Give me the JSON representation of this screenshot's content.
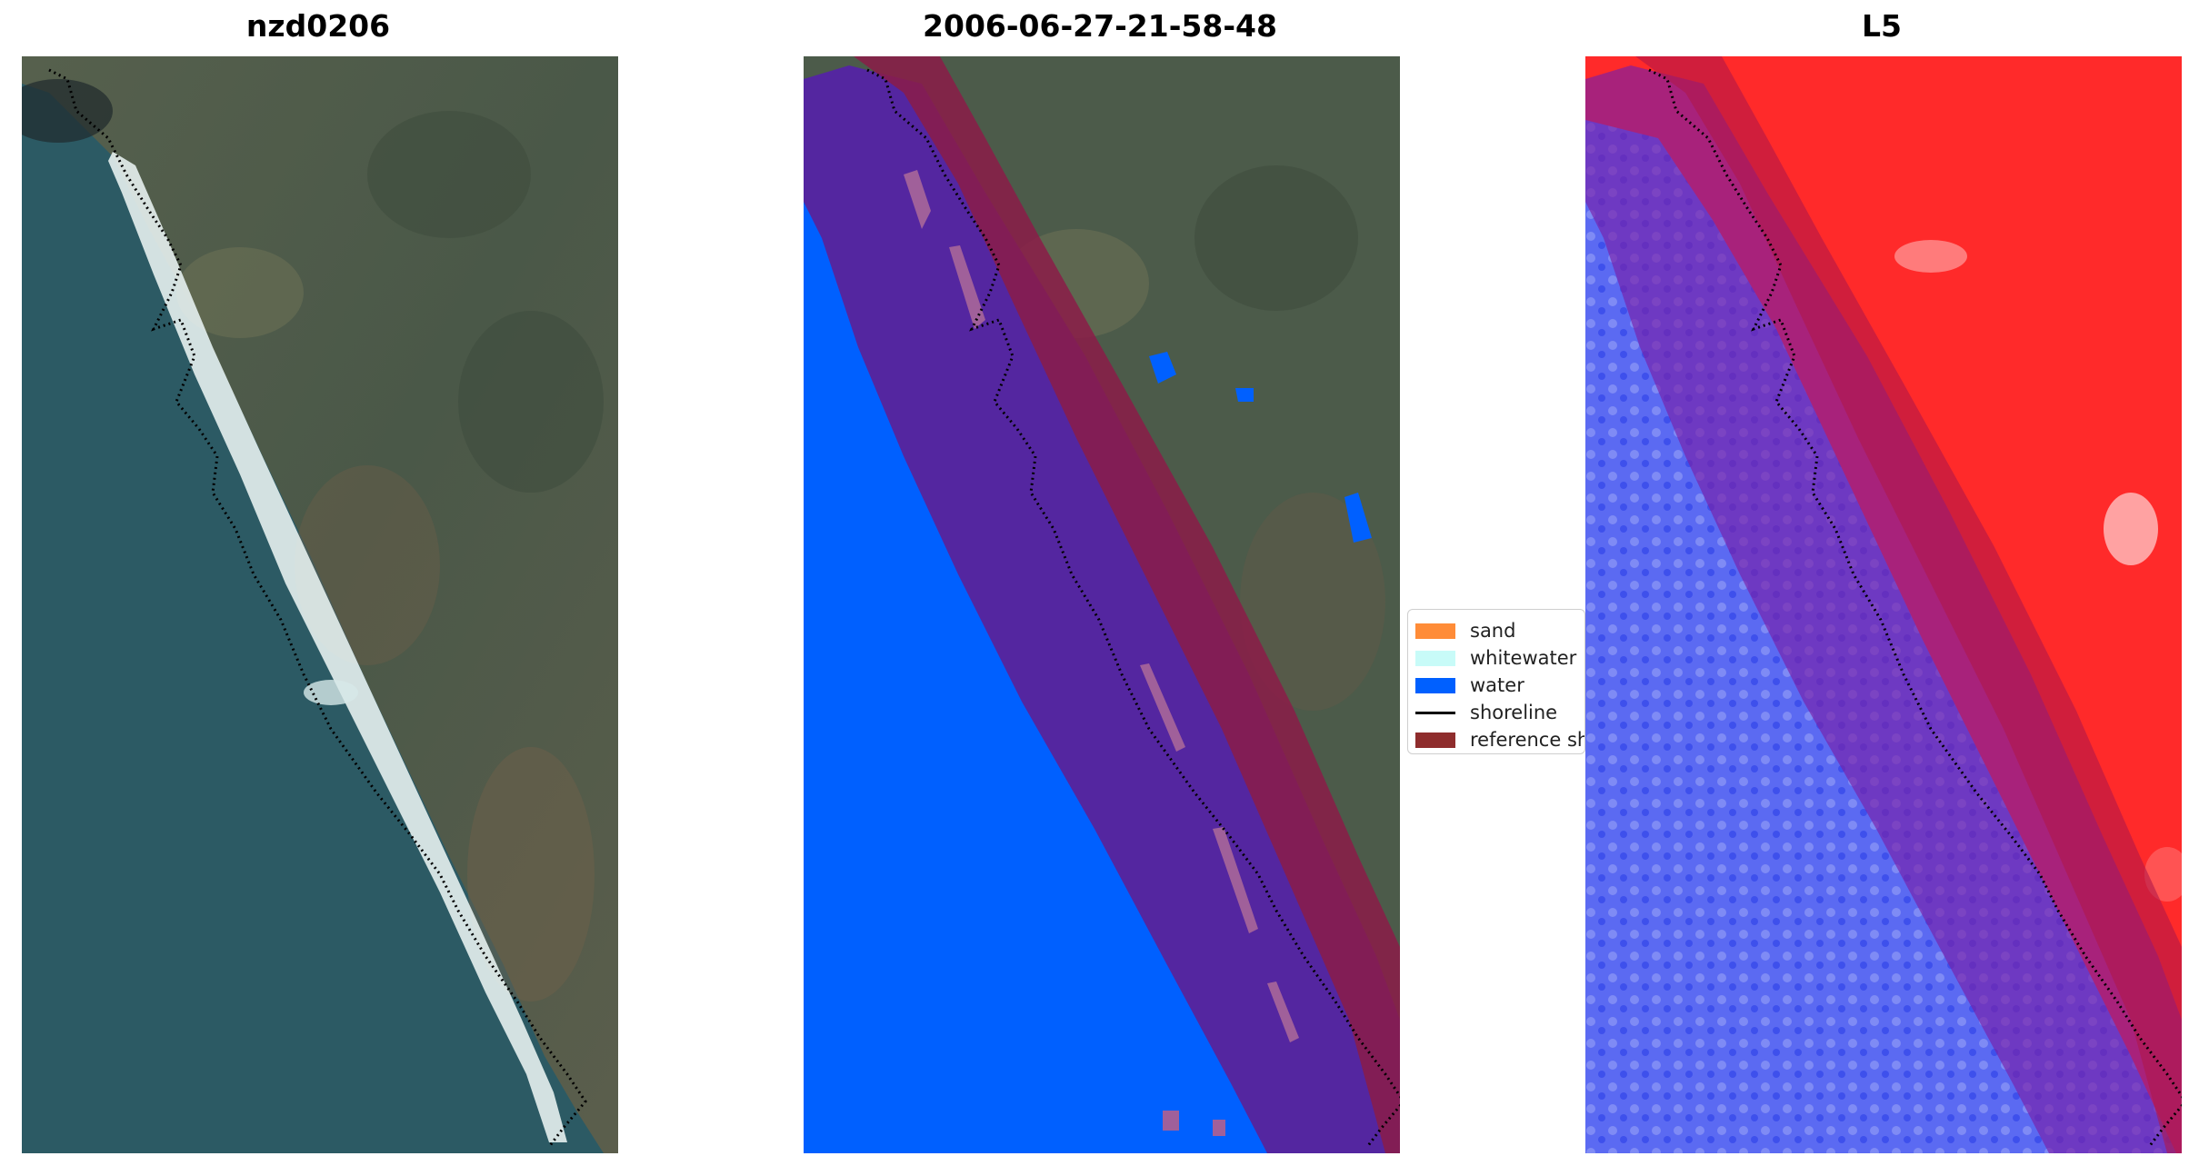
{
  "titles": {
    "left": "nzd0206",
    "middle": "2006-06-27-21-58-48",
    "right": "L5"
  },
  "legend": {
    "items": [
      {
        "label": "sand",
        "color": "#ff8c38"
      },
      {
        "label": "whitewater",
        "color": "#c8fbf8"
      },
      {
        "label": "water",
        "color": "#0060ff"
      },
      {
        "label": "shoreline",
        "color": "#000000",
        "style": "line"
      },
      {
        "label": "reference sh",
        "color": "#8f2d2d"
      }
    ]
  },
  "colors": {
    "sea": "#2c5a64",
    "land": "#4f5c4a",
    "surf": "#e8f2f0",
    "water_class": "#0060ff",
    "reference_buffer": "#8b1c48",
    "index_positive": "#ff2020",
    "index_negative": "#5868f0"
  }
}
